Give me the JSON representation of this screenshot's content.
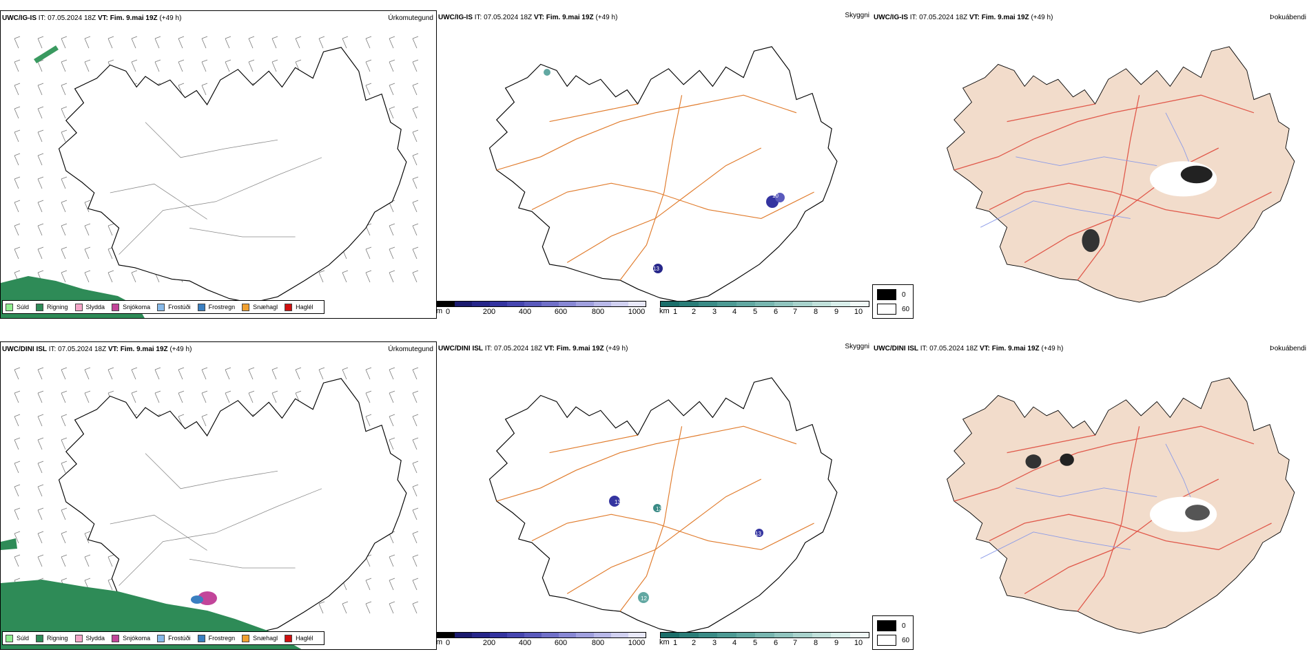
{
  "rows": [
    {
      "model": "UWC/IG-IS",
      "it_label": "IT:",
      "it_value": "07.05.2024 18Z",
      "vt_label": "VT:",
      "vt_value": "Fim. 9.mai 19Z",
      "lead": "(+49 h)",
      "precip_title": "Úrkomutegund",
      "vis_title": "Skyggni",
      "fog_title": "Þokuábendi"
    },
    {
      "model": "UWC/DINI ISL",
      "it_label": "IT:",
      "it_value": "07.05.2024 18Z",
      "vt_label": "VT:",
      "vt_value": "Fim. 9.mai 19Z",
      "lead": "(+49 h)",
      "precip_title": "Úrkomutegund",
      "vis_title": "Skyggni",
      "fog_title": "Þokuábendi"
    }
  ],
  "precip_legend": [
    {
      "label": "Súld",
      "color": "#90ee90"
    },
    {
      "label": "Rigning",
      "color": "#2e8b57"
    },
    {
      "label": "Slydda",
      "color": "#f4a6c8"
    },
    {
      "label": "Snjókoma",
      "color": "#c2459a"
    },
    {
      "label": "Frostúði",
      "color": "#87b9e8"
    },
    {
      "label": "Frostregn",
      "color": "#3a7fc1"
    },
    {
      "label": "Snæhagl",
      "color": "#f0a030"
    },
    {
      "label": "Haglél",
      "color": "#d01010"
    }
  ],
  "height_scale": {
    "unit": "m",
    "ticks": [
      "0",
      "200",
      "400",
      "600",
      "800",
      "1000"
    ],
    "colors": [
      "#000000",
      "#1a1a6e",
      "#26268a",
      "#3434a0",
      "#4646b0",
      "#5a5abc",
      "#7070c8",
      "#8888d4",
      "#a0a0de",
      "#b8b8e8",
      "#d0d0f0",
      "#e8e8f8"
    ]
  },
  "vis_scale": {
    "unit": "km",
    "ticks": [
      "1",
      "2",
      "3",
      "4",
      "5",
      "6",
      "7",
      "8",
      "9",
      "10"
    ],
    "colors": [
      "#1b6e6a",
      "#2a7d78",
      "#3a8b86",
      "#4d9a94",
      "#62a8a2",
      "#78b6b0",
      "#90c4be",
      "#a8d2cc",
      "#c0e0da",
      "#d8eeea",
      "#f0f8f6"
    ]
  },
  "fog_scale": {
    "labels": [
      "0",
      "60"
    ],
    "colors": [
      "#000000",
      "#ffffff"
    ]
  },
  "map_labels": {
    "top": [
      "10",
      "95",
      "13"
    ],
    "bottom": [
      "13",
      "13",
      "13",
      "12"
    ]
  },
  "colors": {
    "land_fog": "#f2dccb",
    "roads": "#e07a2a",
    "roads_fog": "#e0584a",
    "rivers": "#8a9ae8",
    "rain": "#2e8b57"
  }
}
